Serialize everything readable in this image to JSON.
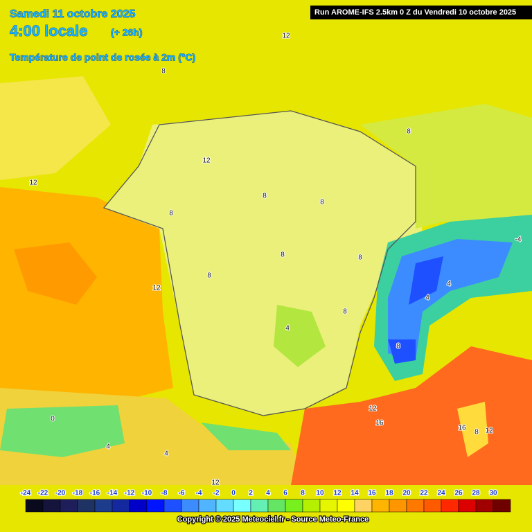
{
  "header": {
    "title": "Samedi 11 octobre 2025",
    "time": "4:00 locale",
    "offset": "(+ 26h)",
    "subtitle": "Température de point de rosée à 2m (°C)",
    "run": "Run AROME-IFS 2.5km 0 Z du Vendredi 10 octobre 2025"
  },
  "map": {
    "contour_labels": [
      "12",
      "8",
      "12",
      "12",
      "8",
      "8",
      "8",
      "8",
      "8",
      "8",
      "12",
      "8",
      "4",
      "8",
      "8",
      "4",
      "4",
      "-4",
      "12",
      "16",
      "16",
      "8",
      "12",
      "0",
      "4",
      "4",
      "12"
    ]
  },
  "colorbar": {
    "ticks": [
      -24,
      -22,
      -20,
      -18,
      -16,
      -14,
      -12,
      -10,
      -8,
      -6,
      -4,
      -2,
      0,
      2,
      4,
      6,
      8,
      10,
      12,
      14,
      16,
      18,
      20,
      22,
      24,
      26,
      28,
      30
    ],
    "colors": [
      "#0a0a1e",
      "#14143c",
      "#1e1e5a",
      "#1e3264",
      "#1e3c8c",
      "#1428a0",
      "#0000c8",
      "#0014ff",
      "#1e50ff",
      "#3c8cff",
      "#50b4ff",
      "#64dcff",
      "#78ffff",
      "#64f0b4",
      "#64e664",
      "#78f01e",
      "#b4f000",
      "#e6f500",
      "#ffff00",
      "#ffd264",
      "#ffb400",
      "#ff9600",
      "#ff7800",
      "#ff5a00",
      "#ff2800",
      "#dc0000",
      "#a00000",
      "#6e0000"
    ]
  },
  "footer": {
    "copyright": "Copyright © 2025 Meteociel.fr - Source Meteo-France"
  }
}
